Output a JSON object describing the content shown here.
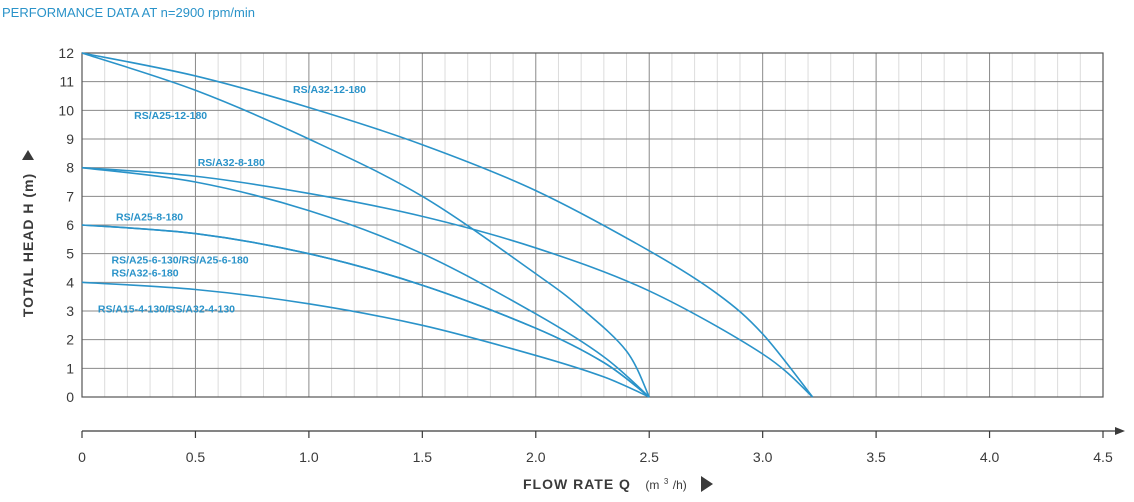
{
  "title": "PERFORMANCE DATA AT n=2900 rpm/min",
  "chart_data": {
    "type": "line",
    "title": "PERFORMANCE DATA AT n=2900 rpm/min",
    "xlabel": "FLOW RATE Q",
    "xunit_base": "(m",
    "xunit_sup": "3",
    "xunit_tail": "/h)",
    "ylabel": "TOTAL HEAD H (m)",
    "xlim": [
      0,
      4.5
    ],
    "ylim": [
      0,
      12
    ],
    "x_ticks": [
      "0",
      "0.5",
      "1.0",
      "1.5",
      "2.0",
      "2.5",
      "3.0",
      "3.5",
      "4.0",
      "4.5"
    ],
    "y_ticks": [
      "0",
      "1",
      "2",
      "3",
      "4",
      "5",
      "6",
      "7",
      "8",
      "9",
      "10",
      "11",
      "12"
    ],
    "grid": true,
    "color": "#2a93c9",
    "series": [
      {
        "name": "RS/A32-12-180",
        "x": [
          0,
          0.5,
          1.0,
          1.5,
          2.0,
          2.5,
          2.8,
          3.0,
          3.22
        ],
        "y": [
          12,
          11.2,
          10.1,
          8.8,
          7.2,
          5.1,
          3.6,
          2.2,
          0
        ]
      },
      {
        "name": "RS/A25-12-180",
        "x": [
          0,
          0.5,
          1.0,
          1.5,
          2.0,
          2.2,
          2.4,
          2.5
        ],
        "y": [
          12,
          10.7,
          9.0,
          7.0,
          4.3,
          3.1,
          1.6,
          0
        ]
      },
      {
        "name": "RS/A32-8-180",
        "x": [
          0,
          0.5,
          1.0,
          1.5,
          2.0,
          2.5,
          3.0,
          3.22
        ],
        "y": [
          8,
          7.7,
          7.1,
          6.3,
          5.2,
          3.7,
          1.5,
          0
        ]
      },
      {
        "name": "RS/A25-8-180",
        "x": [
          0,
          0.5,
          1.0,
          1.5,
          2.0,
          2.3,
          2.5
        ],
        "y": [
          8,
          7.5,
          6.5,
          5.0,
          2.9,
          1.4,
          0
        ]
      },
      {
        "name": "RS/A25-6-130/RS/A25-6-180",
        "x": [
          0,
          0.5,
          1.0,
          1.5,
          2.0,
          2.3,
          2.5
        ],
        "y": [
          6,
          5.7,
          5.0,
          3.9,
          2.4,
          1.2,
          0
        ]
      },
      {
        "name": "RS/A32-6-180",
        "x": [
          0,
          0.5,
          1.0,
          1.5,
          2.0,
          2.3,
          2.5
        ],
        "y": [
          6,
          5.7,
          5.0,
          3.9,
          2.4,
          1.2,
          0
        ]
      },
      {
        "name": "RS/A15-4-130/RS/A32-4-130",
        "x": [
          0,
          0.5,
          1.0,
          1.5,
          2.0,
          2.3,
          2.5
        ],
        "y": [
          4,
          3.75,
          3.25,
          2.5,
          1.45,
          0.7,
          0
        ]
      }
    ],
    "labels": [
      {
        "text": "RS/A32-12-180",
        "x": 0.93,
        "y": 10.6
      },
      {
        "text": "RS/A25-12-180",
        "x": 0.23,
        "y": 9.7
      },
      {
        "text": "RS/A32-8-180",
        "x": 0.51,
        "y": 8.05
      },
      {
        "text": "RS/A25-8-180",
        "x": 0.15,
        "y": 6.15
      },
      {
        "text": "RS/A25-6-130/RS/A25-6-180",
        "x": 0.13,
        "y": 4.65
      },
      {
        "text": "RS/A32-6-180",
        "x": 0.13,
        "y": 4.2
      },
      {
        "text": "RS/A15-4-130/RS/A32-4-130",
        "x": 0.07,
        "y": 2.95
      }
    ]
  }
}
